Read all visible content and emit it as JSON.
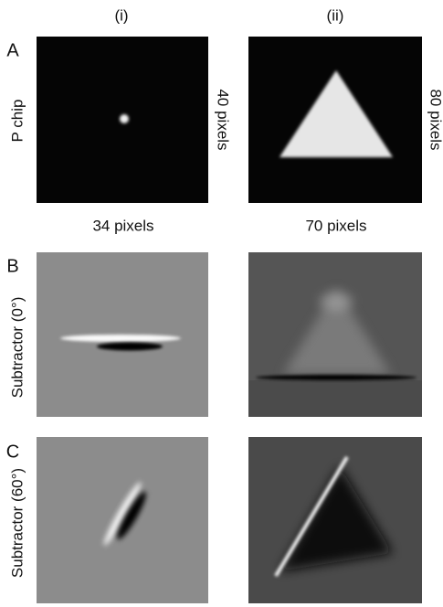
{
  "header": {
    "columns": [
      "(i)",
      "(ii)"
    ]
  },
  "rows": [
    {
      "label": "A",
      "ylabel": "P chip",
      "side_labels": [
        "40 pixels",
        "80 pixels"
      ],
      "bottom_labels": [
        "34 pixels",
        "70 pixels"
      ]
    },
    {
      "label": "B",
      "ylabel": "Subtractor (0°)"
    },
    {
      "label": "C",
      "ylabel": "Subtractor (60°)"
    }
  ]
}
